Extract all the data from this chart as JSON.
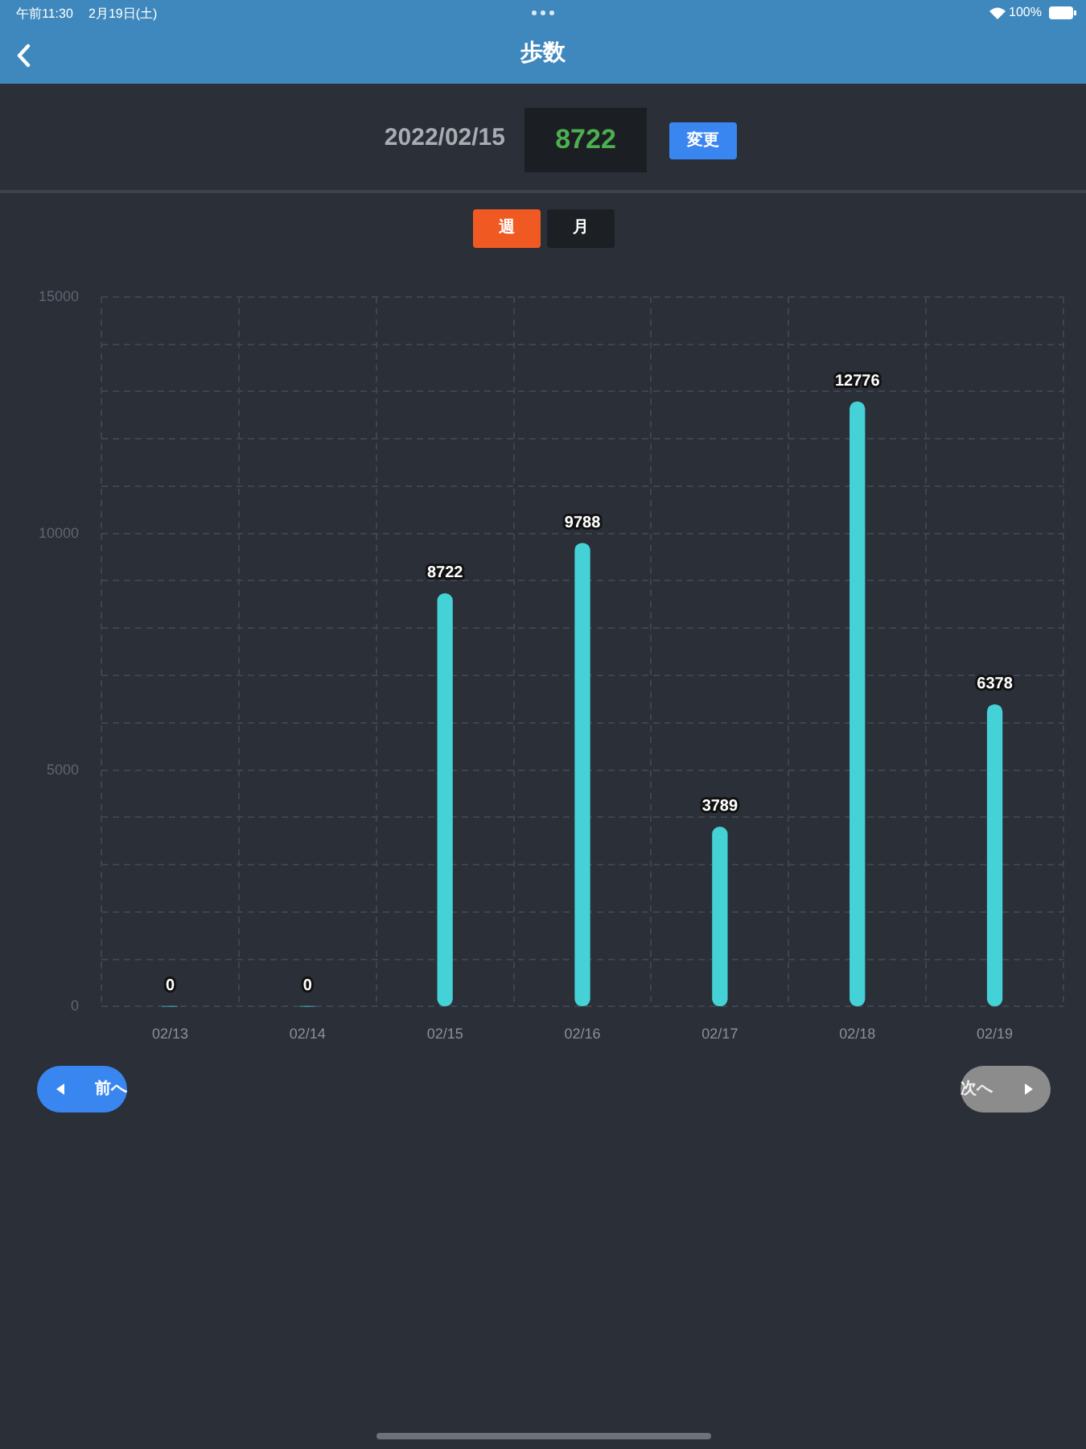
{
  "chart_data": {
    "type": "bar",
    "title": "歩数",
    "subtitle": "2022/02/15",
    "categories": [
      "02/13",
      "02/14",
      "02/15",
      "02/16",
      "02/17",
      "02/18",
      "02/19"
    ],
    "values": [
      0,
      0,
      8722,
      9788,
      3789,
      12776,
      6378
    ],
    "color": "#45d2d6",
    "ylim": [
      0,
      15000
    ],
    "yticks": [
      0,
      {
        "value": 1000,
        "label": null
      },
      {
        "value": 2000,
        "label": null
      },
      {
        "value": 3000,
        "label": null
      },
      {
        "value": 4000,
        "label": null
      },
      5000,
      {
        "value": 6000,
        "label": null
      },
      {
        "value": 7000,
        "label": null
      },
      {
        "value": 8000,
        "label": null
      },
      {
        "value": 9000,
        "label": null
      },
      10000,
      {
        "value": 11000,
        "label": null
      },
      {
        "value": 12000,
        "label": null
      },
      {
        "value": 13000,
        "label": null
      },
      {
        "value": 14000,
        "label": null
      },
      15000
    ],
    "grid": true,
    "data_labels": true,
    "annotations": [
      "午前11:30",
      "2月19日(土)",
      "100%",
      "8722",
      "変更",
      "週",
      "月",
      "前へ",
      "次へ"
    ]
  }
}
